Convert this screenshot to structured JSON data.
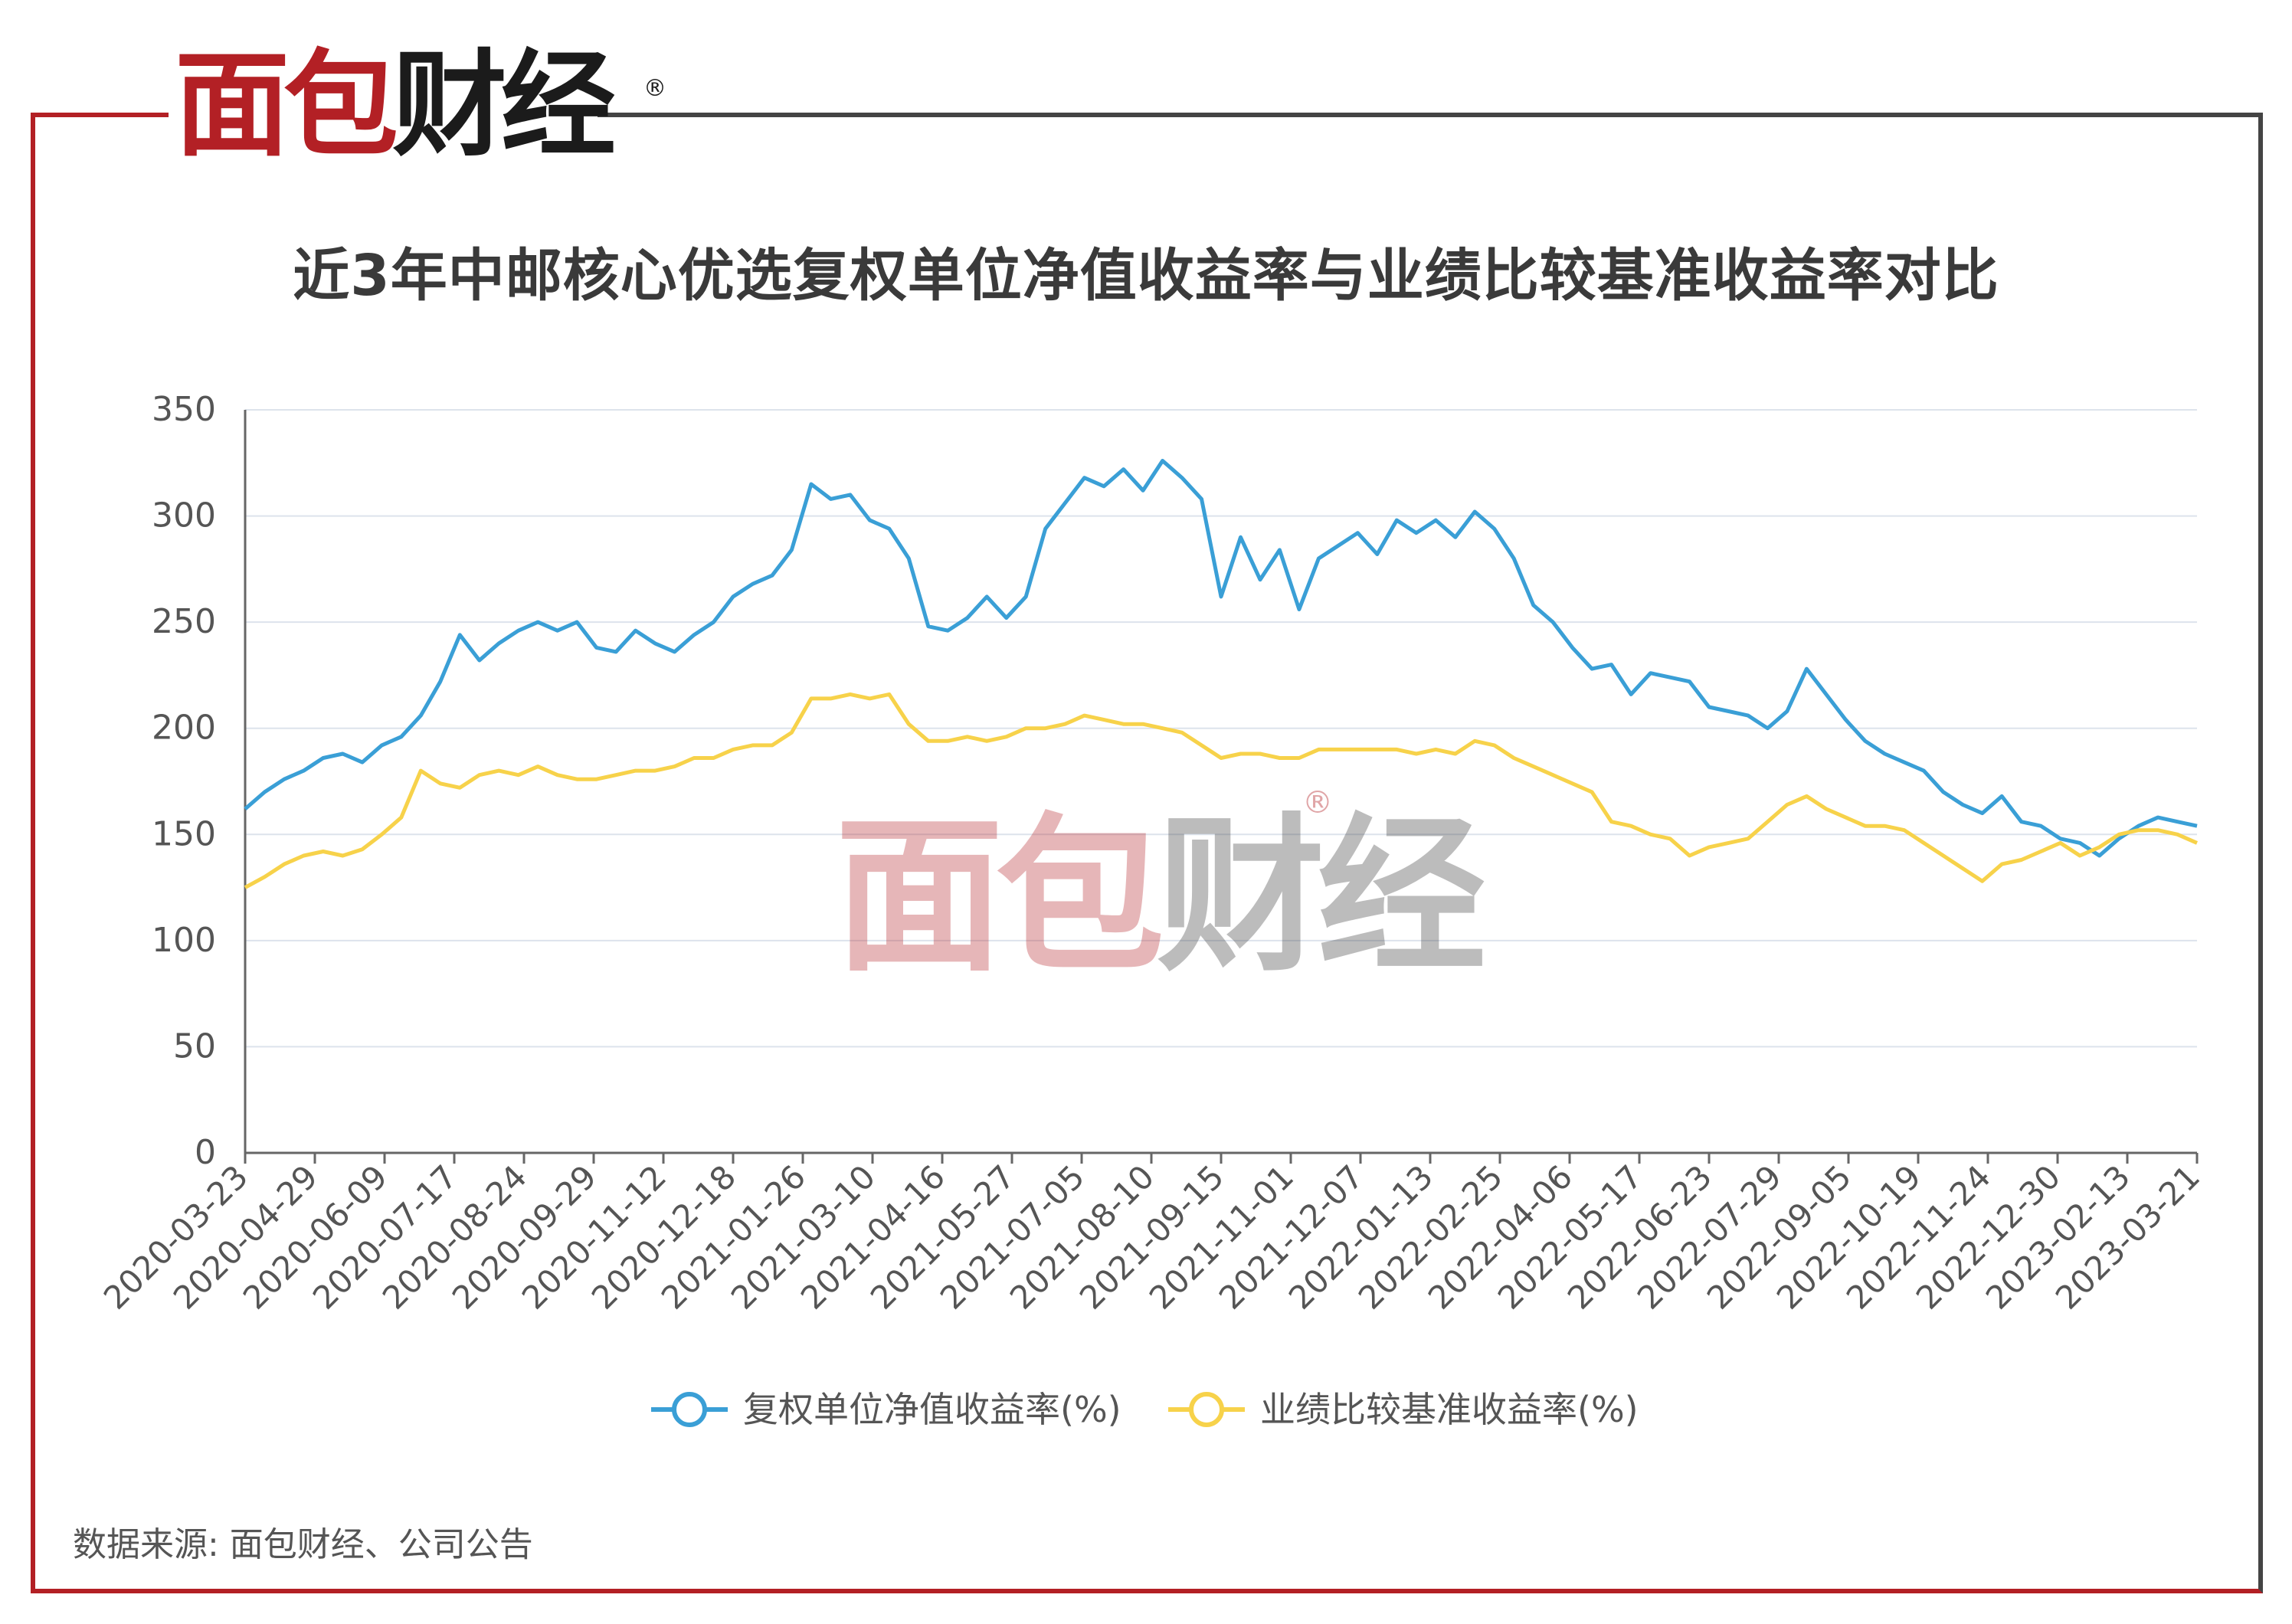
{
  "brand": {
    "logo_red": "面包",
    "logo_dark": "财经",
    "reg_mark": "®",
    "accent_color": "#b32025"
  },
  "title": "近3年中邮核心优选复权单位净值收益率与业绩比较基准收益率对比",
  "footer": "数据来源: 面包财经、公司公告",
  "chart_data": {
    "type": "line",
    "title": "近3年中邮核心优选复权单位净值收益率与业绩比较基准收益率对比",
    "xlabel": "",
    "ylabel": "",
    "ylim": [
      0,
      350
    ],
    "yticks": [
      0,
      50,
      100,
      150,
      200,
      250,
      300,
      350
    ],
    "grid": true,
    "legend_position": "bottom-center",
    "x_tick_labels": [
      "2020-03-23",
      "2020-04-29",
      "2020-06-09",
      "2020-07-17",
      "2020-08-24",
      "2020-09-29",
      "2020-11-12",
      "2020-12-18",
      "2021-01-26",
      "2021-03-10",
      "2021-04-16",
      "2021-05-27",
      "2021-07-05",
      "2021-08-10",
      "2021-09-15",
      "2021-11-01",
      "2021-12-07",
      "2022-01-13",
      "2022-02-25",
      "2022-04-06",
      "2022-05-17",
      "2022-06-23",
      "2022-07-29",
      "2022-09-05",
      "2022-10-19",
      "2022-11-24",
      "2022-12-30",
      "2023-02-13",
      "2023-03-21"
    ],
    "series": [
      {
        "name": "复权单位净值收益率(%)",
        "color": "#3a9fd6",
        "values": [
          162,
          170,
          176,
          180,
          186,
          188,
          184,
          192,
          196,
          206,
          222,
          244,
          232,
          240,
          246,
          250,
          246,
          250,
          238,
          236,
          246,
          240,
          236,
          244,
          250,
          262,
          268,
          272,
          284,
          315,
          308,
          310,
          298,
          294,
          280,
          248,
          246,
          252,
          262,
          252,
          262,
          294,
          306,
          318,
          314,
          322,
          312,
          326,
          318,
          308,
          262,
          290,
          270,
          284,
          256,
          280,
          286,
          292,
          282,
          298,
          292,
          298,
          290,
          302,
          294,
          280,
          258,
          250,
          238,
          228,
          230,
          216,
          226,
          224,
          222,
          210,
          208,
          206,
          200,
          208,
          228,
          216,
          204,
          194,
          188,
          184,
          180,
          170,
          164,
          160,
          168,
          156,
          154,
          148,
          146,
          140,
          148,
          154,
          158,
          156,
          154
        ]
      },
      {
        "name": "业绩比较基准收益率(%)",
        "color": "#f7d24a",
        "values": [
          125,
          130,
          136,
          140,
          142,
          140,
          143,
          150,
          158,
          180,
          174,
          172,
          178,
          180,
          178,
          182,
          178,
          176,
          176,
          178,
          180,
          180,
          182,
          186,
          186,
          190,
          192,
          192,
          198,
          214,
          214,
          216,
          214,
          216,
          202,
          194,
          194,
          196,
          194,
          196,
          200,
          200,
          202,
          206,
          204,
          202,
          202,
          200,
          198,
          192,
          186,
          188,
          188,
          186,
          186,
          190,
          190,
          190,
          190,
          190,
          188,
          190,
          188,
          194,
          192,
          186,
          182,
          178,
          174,
          170,
          156,
          154,
          150,
          148,
          140,
          144,
          146,
          148,
          156,
          164,
          168,
          162,
          158,
          154,
          154,
          152,
          146,
          140,
          134,
          128,
          136,
          138,
          142,
          146,
          140,
          144,
          150,
          152,
          152,
          150,
          146
        ]
      }
    ]
  },
  "watermark": {
    "red": "面包",
    "dark": "财经",
    "reg_mark": "®"
  }
}
